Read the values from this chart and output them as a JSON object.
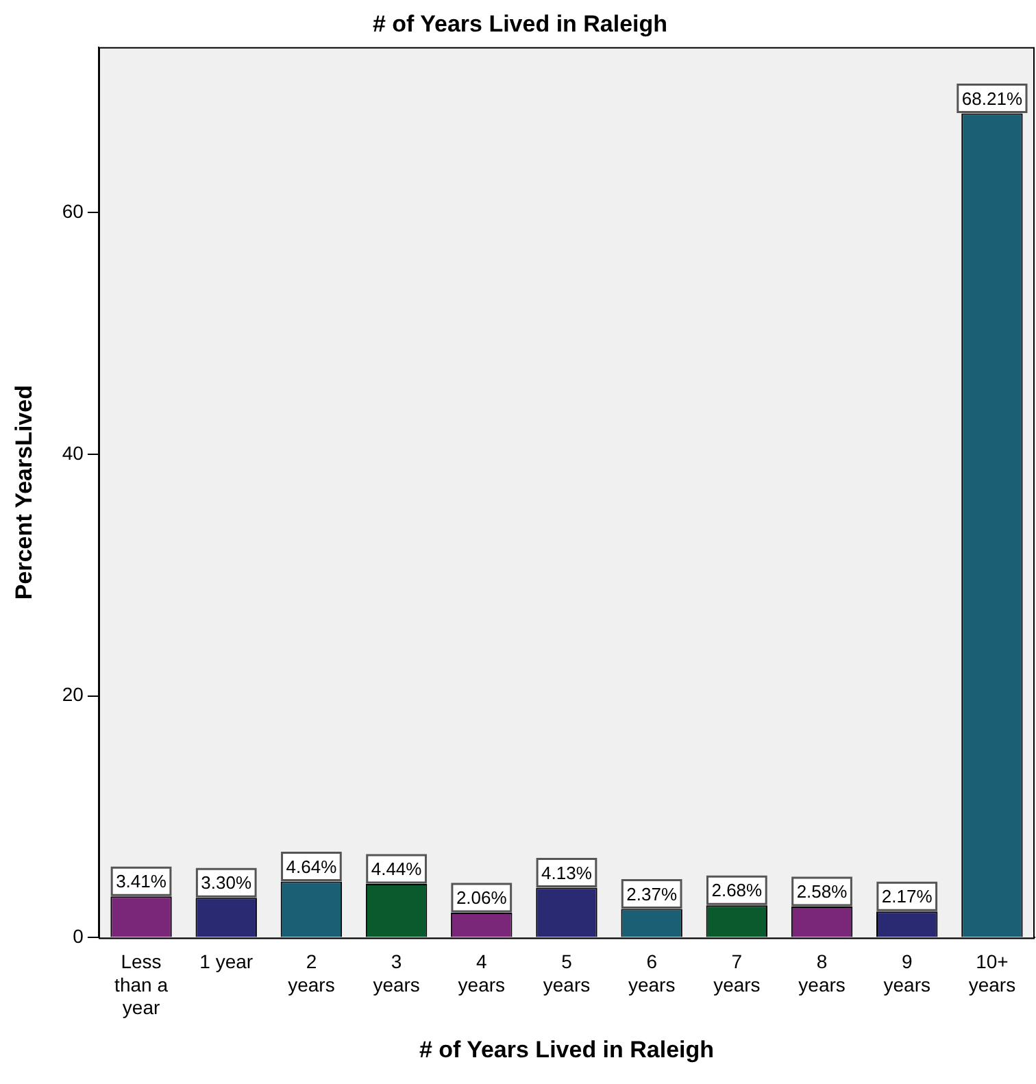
{
  "chart_data": {
    "type": "bar",
    "title": "# of Years Lived in Raleigh",
    "xlabel": "# of Years Lived in Raleigh",
    "ylabel": "Percent YearsLived",
    "categories": [
      "Less than a year",
      "1 year",
      "2 years",
      "3 years",
      "4 years",
      "5 years",
      "6 years",
      "7 years",
      "8 years",
      "9 years",
      "10+ years"
    ],
    "values": [
      3.41,
      3.3,
      4.64,
      4.44,
      2.06,
      4.13,
      2.37,
      2.68,
      2.58,
      2.17,
      68.21
    ],
    "colors": [
      "#7b2779",
      "#2a2a72",
      "#1b5f74",
      "#0b5a2e",
      "#7b2779",
      "#2a2a72",
      "#1b5f74",
      "#0b5a2e",
      "#7b2779",
      "#2a2a72",
      "#1b5f74"
    ],
    "value_labels": [
      "3.41%",
      "3.30%",
      "4.64%",
      "4.44%",
      "2.06%",
      "4.13%",
      "2.37%",
      "2.68%",
      "2.58%",
      "2.17%",
      "68.21%"
    ],
    "ylim": [
      0,
      73.7
    ],
    "yticks": [
      0,
      20,
      40,
      60
    ],
    "grid": false,
    "legend": false
  }
}
